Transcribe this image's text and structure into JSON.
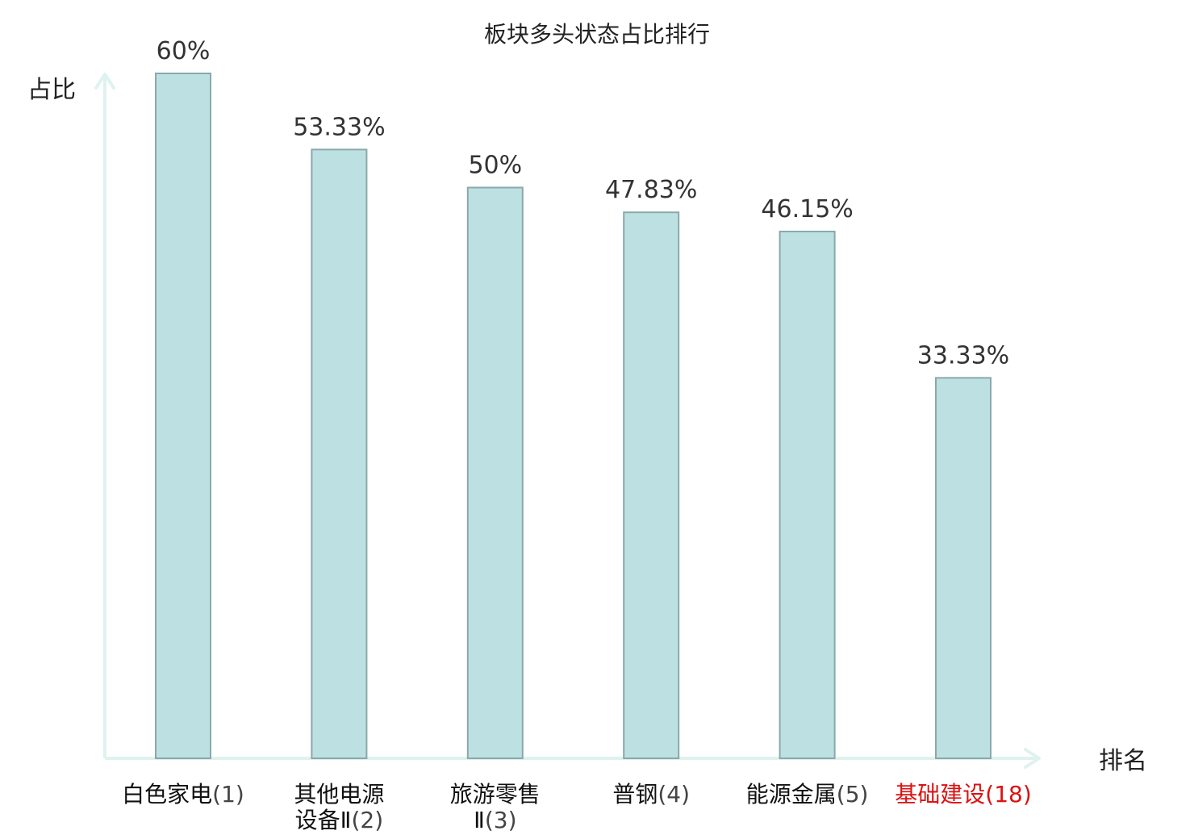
{
  "chart_data": {
    "type": "bar",
    "title": "板块多头状态占比排行",
    "xlabel": "排名",
    "ylabel": "占比",
    "ylim": [
      0,
      60
    ],
    "unit": "%",
    "categories": [
      {
        "name_lines": [
          "白色家电"
        ],
        "rank": "(1)",
        "value": 60,
        "label": "60%",
        "highlight": false
      },
      {
        "name_lines": [
          "其他电源",
          "设备Ⅱ"
        ],
        "rank": "(2)",
        "value": 53.33,
        "label": "53.33%",
        "highlight": false
      },
      {
        "name_lines": [
          "旅游零售",
          "Ⅱ"
        ],
        "rank": "(3)",
        "value": 50,
        "label": "50%",
        "highlight": false
      },
      {
        "name_lines": [
          "普钢"
        ],
        "rank": "(4)",
        "value": 47.83,
        "label": "47.83%",
        "highlight": false
      },
      {
        "name_lines": [
          "能源金属"
        ],
        "rank": "(5)",
        "value": 46.15,
        "label": "46.15%",
        "highlight": false
      },
      {
        "name_lines": [
          "基础建设"
        ],
        "rank": "(18)",
        "value": 33.33,
        "label": "33.33%",
        "highlight": true
      }
    ],
    "grid": false,
    "legend": "none",
    "colors": {
      "bar_fill": "#bde1e3",
      "bar_stroke": "#8aa8aa",
      "axis": "#def2ef",
      "highlight_text": "#dd1111"
    }
  }
}
